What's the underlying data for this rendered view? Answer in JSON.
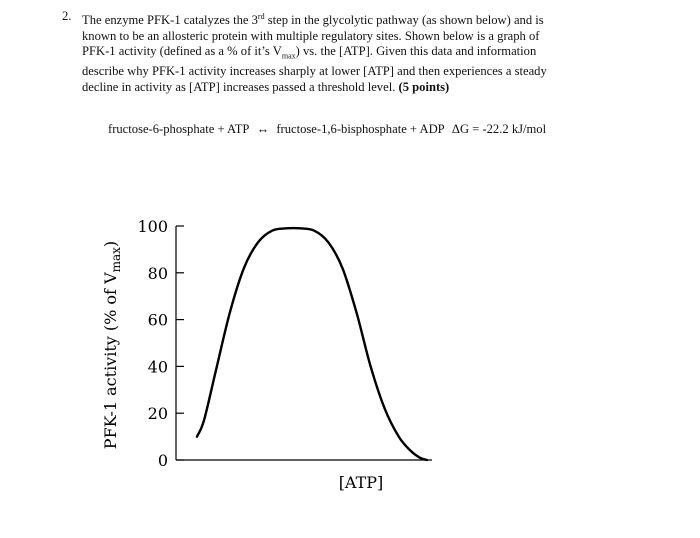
{
  "question": {
    "number": "2.",
    "line1_pre": "The enzyme PFK-1 catalyzes the 3",
    "line1_sup": "rd",
    "line1_post": " step in the glycolytic pathway (as shown below) and is",
    "line2": "known to be an allosteric protein with multiple regulatory sites.  Shown below is a graph of",
    "line3_pre": "PFK-1 activity (defined as a % of it’s V",
    "line3_sub": "max",
    "line3_post": ") vs. the [ATP].  Given this data and information",
    "line4": "describe why PFK-1 activity increases sharply at lower [ATP] and then experiences a steady",
    "line5_pre": "decline in activity as [ATP] increases passed a threshold level. ",
    "points": "(5 points)"
  },
  "reaction": {
    "reactants": "fructose-6-phosphate + ATP",
    "arrow": "↔",
    "products": "fructose-1,6-bisphosphate + ADP",
    "delta_g": "ΔG = -22.2 kJ/mol"
  },
  "chart_data": {
    "type": "line",
    "xlabel": "[ATP]",
    "ylabel_pre": "PFK-1 activity (% of V",
    "ylabel_sub": "max",
    "ylabel_post": ")",
    "yticks": [
      "0",
      "20",
      "40",
      "60",
      "80",
      "100"
    ],
    "ylim": [
      0,
      100
    ],
    "xlim": [
      0,
      1
    ],
    "series": [
      {
        "x": [
          0.0,
          0.03,
          0.08,
          0.14,
          0.2,
          0.26,
          0.32,
          0.38,
          0.44,
          0.5,
          0.56,
          0.62,
          0.68,
          0.74,
          0.8,
          0.86,
          0.91,
          0.95,
          0.98
        ],
        "y": [
          10,
          17,
          38,
          63,
          82,
          93,
          98,
          99,
          99,
          98,
          93,
          82,
          63,
          40,
          22,
          10,
          4,
          1,
          0
        ]
      }
    ]
  }
}
